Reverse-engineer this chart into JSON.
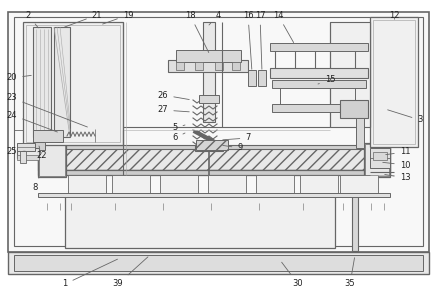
{
  "bg_color": "#ffffff",
  "lc": "#aaaaaa",
  "dc": "#666666",
  "fc_light": "#f2f2f2",
  "fc_med": "#e0e0e0",
  "fc_dark": "#cccccc",
  "fig_width": 4.37,
  "fig_height": 2.99,
  "dpi": 100
}
